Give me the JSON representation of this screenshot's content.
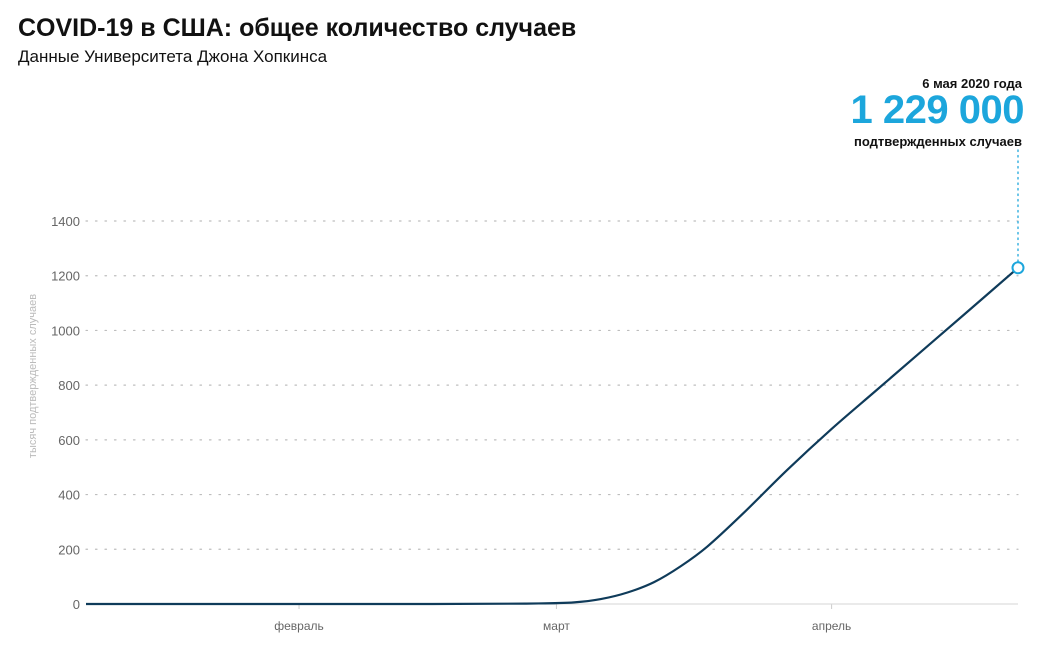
{
  "header": {
    "title": "COVID-19 в США: общее количество случаев",
    "subtitle": "Данные Университета Джона Хопкинса"
  },
  "annotation": {
    "date": "6 мая 2020 года",
    "value": "1 229 000",
    "label": "подтвержденных случаев"
  },
  "colors": {
    "line": "#0f3b5a",
    "accent": "#1ca6dc",
    "grid": "#bdbdbd",
    "tick_text": "#666666",
    "ylabel_text": "#bbbbbb"
  },
  "chart_data": {
    "type": "line",
    "title": "COVID-19 в США: общее количество случаев",
    "xlabel": "",
    "ylabel": "тысяч подтвержденных случаев",
    "x_range": [
      "2020-01-22",
      "2020-05-06"
    ],
    "ylim": [
      0,
      1400
    ],
    "yticks": [
      0,
      200,
      400,
      600,
      800,
      1000,
      1200,
      1400
    ],
    "xticks": [
      {
        "label": "февраль",
        "date": "2020-02-15"
      },
      {
        "label": "март",
        "date": "2020-03-15"
      },
      {
        "label": "апрель",
        "date": "2020-04-15"
      }
    ],
    "grid": true,
    "series": [
      {
        "values": [
          {
            "x": "2020-01-22",
            "y": 0
          },
          {
            "x": "2020-03-01",
            "y": 0
          },
          {
            "x": "2020-03-13",
            "y": 2
          },
          {
            "x": "2020-03-17",
            "y": 6
          },
          {
            "x": "2020-03-20",
            "y": 18
          },
          {
            "x": "2020-03-23",
            "y": 42
          },
          {
            "x": "2020-03-26",
            "y": 80
          },
          {
            "x": "2020-03-29",
            "y": 138
          },
          {
            "x": "2020-04-01",
            "y": 210
          },
          {
            "x": "2020-04-05",
            "y": 330
          },
          {
            "x": "2020-04-10",
            "y": 490
          },
          {
            "x": "2020-04-15",
            "y": 640
          },
          {
            "x": "2020-04-20",
            "y": 780
          },
          {
            "x": "2020-04-25",
            "y": 920
          },
          {
            "x": "2020-04-30",
            "y": 1060
          },
          {
            "x": "2020-05-06",
            "y": 1229
          }
        ]
      }
    ],
    "highlight": {
      "x": "2020-05-06",
      "y": 1229
    }
  }
}
